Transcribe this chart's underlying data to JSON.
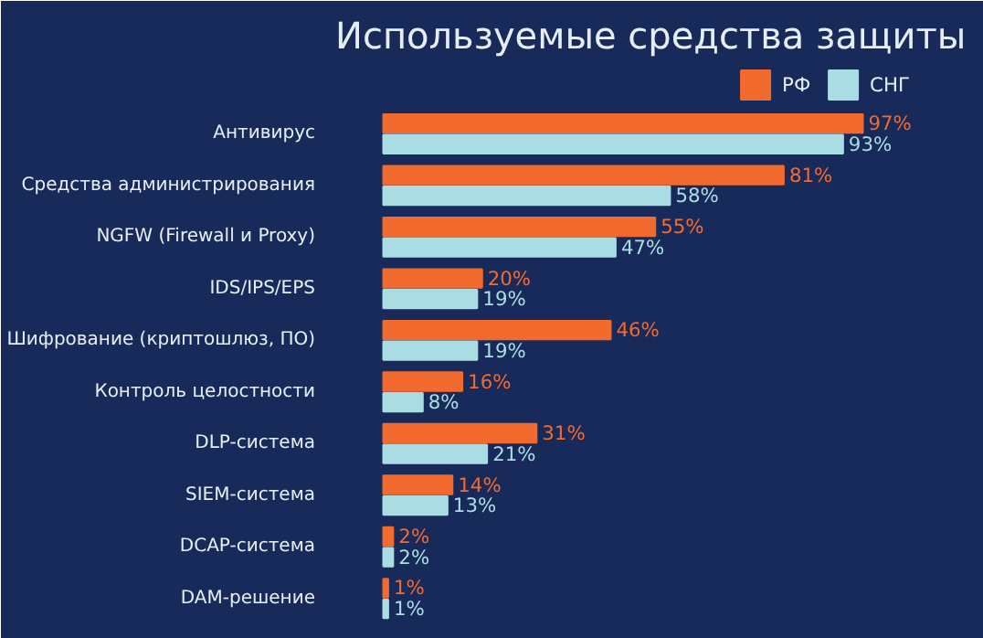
{
  "chart_data": {
    "type": "bar",
    "orientation": "horizontal",
    "title": "Используемые средства защиты",
    "categories": [
      "Антивирус",
      "Средства администрирования",
      "NGFW (Firewall и Proxy)",
      "IDS/IPS/EPS",
      "Шифрование (криптошлюз, ПО)",
      "Контроль целостности",
      "DLP-система",
      "SIEM-система",
      "DCAP-система",
      "DAM-решение"
    ],
    "series": [
      {
        "name": "РФ",
        "color": "#f26a2e",
        "values": [
          97,
          81,
          55,
          20,
          46,
          16,
          31,
          14,
          2,
          1
        ],
        "value_labels": [
          "97%",
          "81%",
          "55%",
          "20%",
          "46%",
          "16%",
          "31%",
          "14%",
          "2%",
          "1%"
        ]
      },
      {
        "name": "СНГ",
        "color": "#a9dde3",
        "values": [
          93,
          58,
          47,
          19,
          19,
          8,
          21,
          13,
          2,
          1
        ],
        "value_labels": [
          "93%",
          "58%",
          "47%",
          "19%",
          "19%",
          "8%",
          "21%",
          "13%",
          "2%",
          "1%"
        ]
      }
    ],
    "tick_labels": "y",
    "legend": "top right"
  }
}
